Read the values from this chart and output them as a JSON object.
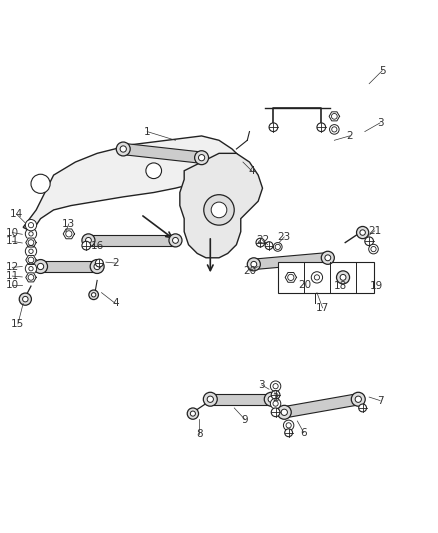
{
  "title": "",
  "bg_color": "#ffffff",
  "fig_width": 4.38,
  "fig_height": 5.33,
  "dpi": 100,
  "line_color": "#222222",
  "label_color": "#333333",
  "label_fontsize": 7.5
}
